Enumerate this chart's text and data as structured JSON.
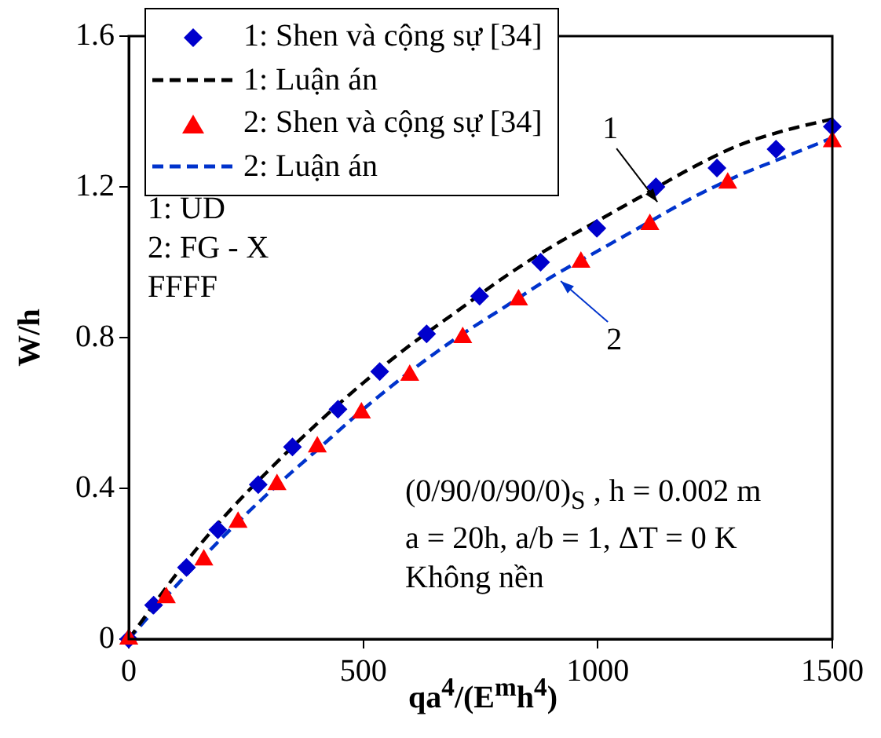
{
  "chart_data": {
    "type": "line",
    "xlabel": "qa$^{4}$/(E$^{m}$h$^{4}$)",
    "ylabel": "W/h",
    "xlim": [
      0,
      1500
    ],
    "xticks": [
      0,
      500,
      1000,
      1500
    ],
    "ylim": [
      0,
      1.6
    ],
    "yticks": [
      0,
      0.4,
      0.8,
      1.2,
      1.6
    ],
    "grid": false,
    "legend": "top left",
    "series": [
      {
        "name": "1: Shen và cộng sự [34]",
        "type": "scatter",
        "marker": "diamond",
        "color": "#0000cc",
        "x": [
          0,
          53,
          123,
          190,
          276,
          349,
          446,
          535,
          635,
          748,
          878,
          998,
          1124,
          1254,
          1380,
          1500
        ],
        "values": [
          0,
          0.09,
          0.19,
          0.29,
          0.41,
          0.51,
          0.61,
          0.71,
          0.81,
          0.91,
          1.0,
          1.09,
          1.2,
          1.25,
          1.3,
          1.36
        ]
      },
      {
        "name": "1: Luận án",
        "type": "line",
        "marker": "none",
        "line_style": "dashed",
        "color": "#000000",
        "x": [
          0,
          100,
          200,
          300,
          400,
          500,
          600,
          700,
          800,
          900,
          1000,
          1100,
          1200,
          1300,
          1400,
          1500
        ],
        "values": [
          0,
          0.17,
          0.32,
          0.45,
          0.57,
          0.68,
          0.78,
          0.87,
          0.96,
          1.04,
          1.11,
          1.18,
          1.25,
          1.31,
          1.35,
          1.38
        ]
      },
      {
        "name": "2: Shen và cộng sự [34]",
        "type": "scatter",
        "marker": "triangle",
        "color": "#ff0000",
        "x": [
          0,
          80,
          160,
          233,
          316,
          402,
          496,
          599,
          712,
          831,
          964,
          1111,
          1277,
          1500
        ],
        "values": [
          0,
          0.11,
          0.21,
          0.31,
          0.41,
          0.51,
          0.6,
          0.7,
          0.8,
          0.9,
          1.0,
          1.1,
          1.21,
          1.32
        ]
      },
      {
        "name": "2: Luận án",
        "type": "line",
        "marker": "none",
        "line_style": "dashed",
        "color": "#0033cc",
        "x": [
          0,
          100,
          200,
          300,
          400,
          500,
          600,
          700,
          800,
          900,
          1000,
          1100,
          1200,
          1300,
          1400,
          1500
        ],
        "values": [
          0,
          0.14,
          0.27,
          0.39,
          0.5,
          0.61,
          0.71,
          0.8,
          0.88,
          0.96,
          1.03,
          1.1,
          1.17,
          1.23,
          1.28,
          1.33
        ]
      }
    ],
    "annotations": [
      {
        "text": "1",
        "x": 1127,
        "y": 1.16
      },
      {
        "text": "2",
        "x": 921,
        "y": 0.95
      },
      "1: UD",
      "2: FG - X",
      "FFFF",
      "(0/90/0/90/0)$_{S}$ , h = 0.002 m",
      "a = 20h, a/b = 1, ΔT = 0 K",
      "Không nền"
    ]
  }
}
